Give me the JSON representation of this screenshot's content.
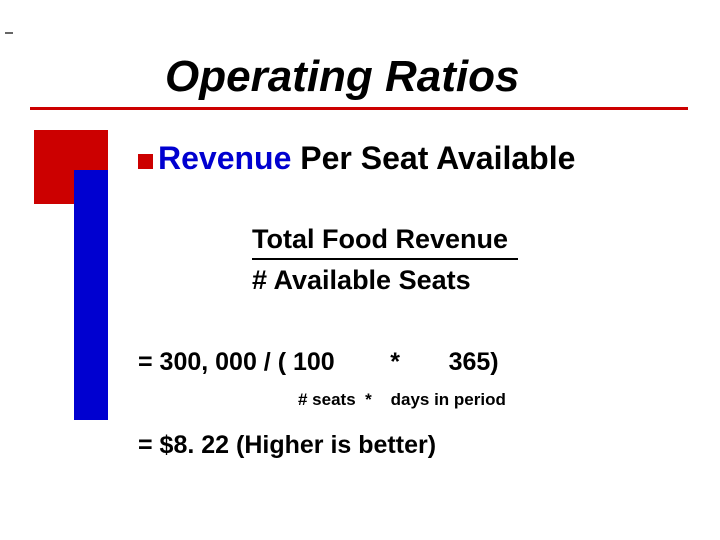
{
  "colors": {
    "accent_red": "#cc0000",
    "accent_blue": "#0000d0",
    "text": "#000000",
    "background": "#ffffff"
  },
  "title": "Operating Ratios",
  "bullet": {
    "prefix": "Revenue",
    "rest": " Per Seat Available"
  },
  "fraction": {
    "numerator": "Total Food Revenue",
    "denominator": "# Available Seats"
  },
  "equation": {
    "text": "= 300, 000 / ( 100        *       365)",
    "sublabel": "# seats  *    days in period"
  },
  "result": "= $8. 22  (Higher is better)"
}
